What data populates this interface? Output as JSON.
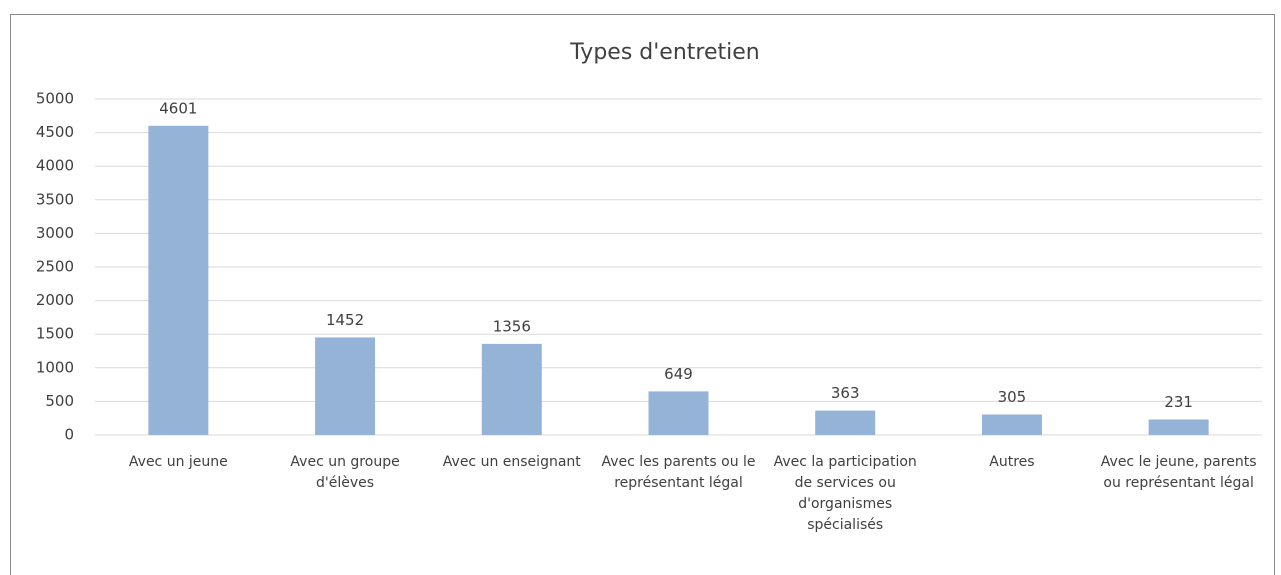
{
  "chart_data": {
    "type": "bar",
    "title": "Types d'entretien",
    "categories": [
      "Avec un jeune",
      "Avec un groupe d'élèves",
      "Avec un enseignant",
      "Avec les parents ou le représentant légal",
      "Avec la participation de services ou d'organismes spécialisés",
      "Autres",
      "Avec le jeune, parents ou représentant légal"
    ],
    "values": [
      4601,
      1452,
      1356,
      649,
      363,
      305,
      231
    ],
    "color": "#95b3d7",
    "ylim": [
      0,
      5000
    ],
    "yticks": [
      0,
      500,
      1000,
      1500,
      2000,
      2500,
      3000,
      3500,
      4000,
      4500,
      5000
    ],
    "grid": true
  }
}
